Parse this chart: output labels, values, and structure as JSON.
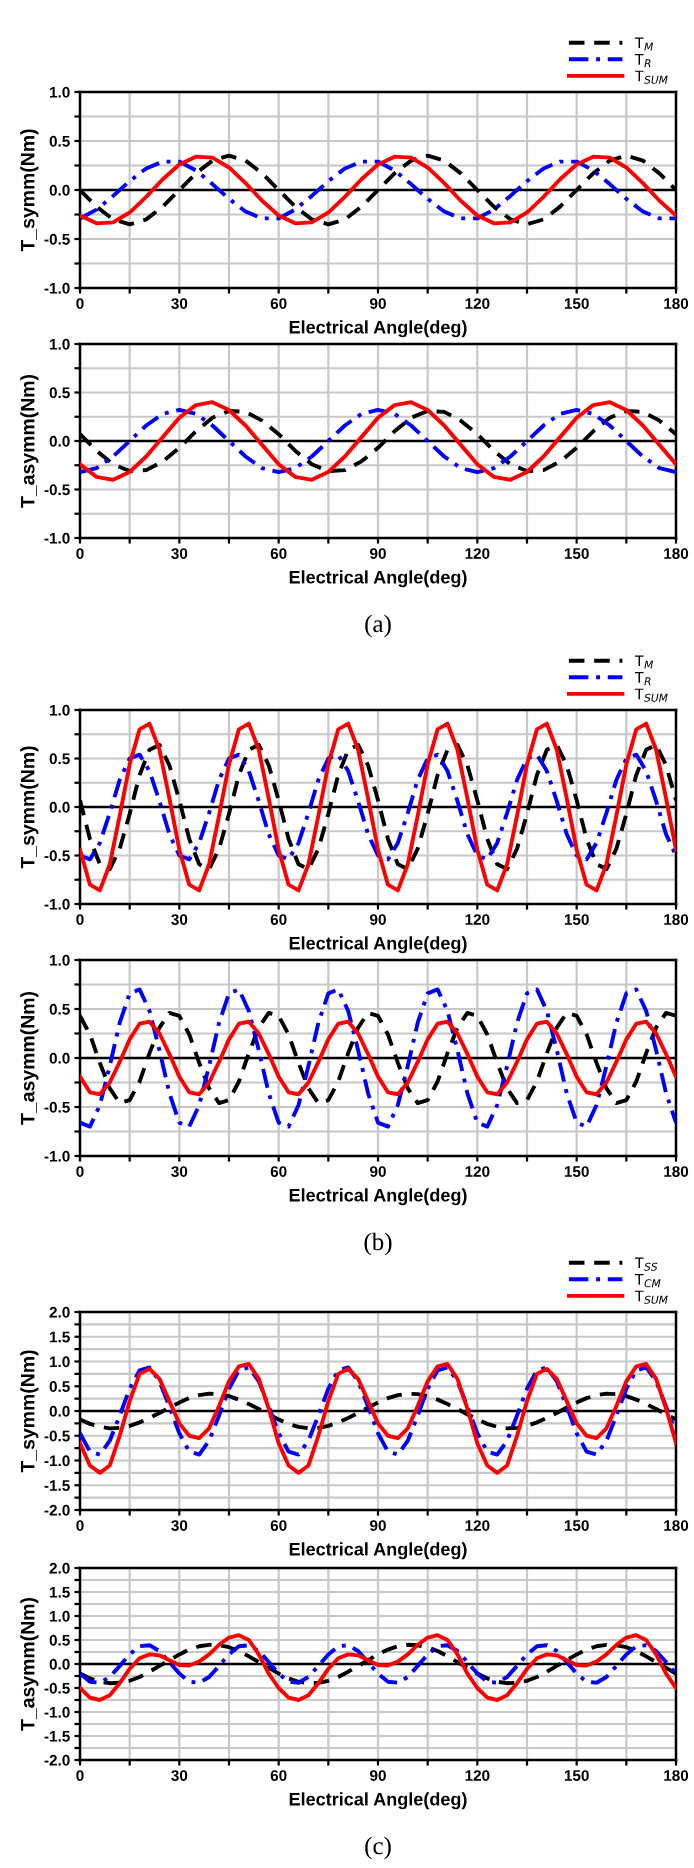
{
  "chart_data": [
    {
      "type": "line",
      "ylabel": "T_symm(Nm)",
      "legend": "top right",
      "grid": true,
      "xlim": [
        0,
        180
      ],
      "ylim": [
        -1.0,
        1.0
      ],
      "xticks": [
        0,
        {
          "value": 15,
          "label": null
        },
        30,
        {
          "value": 45,
          "label": null
        },
        60,
        {
          "value": 75,
          "label": null
        },
        90,
        {
          "value": 105,
          "label": null
        },
        120,
        {
          "value": 135,
          "label": null
        },
        150,
        {
          "value": 165,
          "label": null
        },
        180
      ],
      "yticks": [
        {
          "value": -1.0,
          "label": "-1.0"
        },
        {
          "value": -0.75,
          "label": null
        },
        {
          "value": -0.5,
          "label": "-0.5"
        },
        {
          "value": -0.25,
          "label": null
        },
        {
          "value": 0.0,
          "label": "0.0"
        },
        {
          "value": 0.25,
          "label": null
        },
        {
          "value": 0.5,
          "label": "0.5"
        },
        {
          "value": 0.75,
          "label": null
        },
        {
          "value": 1.0,
          "label": "1.0"
        }
      ],
      "ref_lines": [
        {
          "axis": "y",
          "value": 0,
          "color": "#000000"
        }
      ],
      "x": [
        0,
        5,
        10,
        15,
        20,
        25,
        30,
        35,
        40,
        45,
        50,
        55,
        60,
        65,
        70,
        75,
        80,
        85,
        90,
        95,
        100,
        105,
        110,
        115,
        120,
        125,
        130,
        135,
        140,
        145,
        150,
        155,
        160,
        165,
        170,
        175,
        180
      ],
      "series": [
        {
          "name": "T$_{M}$",
          "color": "#000000",
          "line_style": "dashed",
          "values": [
            0,
            -0.17,
            -0.3,
            -0.35,
            -0.3,
            -0.17,
            0,
            0.17,
            0.3,
            0.35,
            0.3,
            0.17,
            0,
            -0.17,
            -0.3,
            -0.35,
            -0.3,
            -0.17,
            0,
            0.17,
            0.3,
            0.35,
            0.3,
            0.17,
            0,
            -0.17,
            -0.3,
            -0.35,
            -0.3,
            -0.17,
            0,
            0.17,
            0.3,
            0.35,
            0.3,
            0.17,
            0
          ]
        },
        {
          "name": "T$_{R}$",
          "color": "#0000ff",
          "line_style": "dashdot",
          "values": [
            -0.29,
            -0.2,
            -0.06,
            0.09,
            0.22,
            0.29,
            0.29,
            0.2,
            0.06,
            -0.09,
            -0.22,
            -0.29,
            -0.29,
            -0.2,
            -0.06,
            0.09,
            0.22,
            0.29,
            0.29,
            0.2,
            0.06,
            -0.09,
            -0.22,
            -0.29,
            -0.29,
            -0.2,
            -0.06,
            0.09,
            0.22,
            0.29,
            0.29,
            0.2,
            0.06,
            -0.09,
            -0.22,
            -0.29,
            -0.29
          ]
        },
        {
          "name": "T$_{SUM}$",
          "color": "#ff0000",
          "line_style": "solid",
          "values": [
            -0.26,
            -0.34,
            -0.33,
            -0.23,
            -0.07,
            0.11,
            0.26,
            0.34,
            0.33,
            0.23,
            0.07,
            -0.11,
            -0.26,
            -0.34,
            -0.33,
            -0.23,
            -0.07,
            0.11,
            0.26,
            0.34,
            0.33,
            0.23,
            0.07,
            -0.11,
            -0.26,
            -0.34,
            -0.33,
            -0.23,
            -0.07,
            0.11,
            0.26,
            0.34,
            0.33,
            0.23,
            0.07,
            -0.11,
            -0.26
          ]
        }
      ],
      "xlabel": "Electrical Angle(deg)"
    },
    {
      "type": "line",
      "ylabel": "T_asymm(Nm)",
      "xlabel": "Electrical Angle(deg)",
      "legend": false,
      "grid": true,
      "xlim": [
        0,
        180
      ],
      "ylim": [
        -1.0,
        1.0
      ],
      "xticks": [
        0,
        {
          "value": 15,
          "label": null
        },
        30,
        {
          "value": 45,
          "label": null
        },
        60,
        {
          "value": 75,
          "label": null
        },
        90,
        {
          "value": 105,
          "label": null
        },
        120,
        {
          "value": 135,
          "label": null
        },
        150,
        {
          "value": 165,
          "label": null
        },
        180
      ],
      "yticks": [
        {
          "value": -1.0,
          "label": "-1.0"
        },
        {
          "value": -0.75,
          "label": null
        },
        {
          "value": -0.5,
          "label": "-0.5"
        },
        {
          "value": -0.25,
          "label": null
        },
        {
          "value": 0.0,
          "label": "0.0"
        },
        {
          "value": 0.25,
          "label": null
        },
        {
          "value": 0.5,
          "label": "0.5"
        },
        {
          "value": 0.75,
          "label": null
        },
        {
          "value": 1.0,
          "label": "1.0"
        }
      ],
      "ref_lines": [
        {
          "axis": "y",
          "value": 0,
          "color": "#000000"
        }
      ],
      "x": [
        0,
        5,
        10,
        15,
        20,
        25,
        30,
        35,
        40,
        45,
        50,
        55,
        60,
        65,
        70,
        75,
        80,
        85,
        90,
        95,
        100,
        105,
        110,
        115,
        120,
        125,
        130,
        135,
        140,
        145,
        150,
        155,
        160,
        165,
        170,
        175,
        180
      ],
      "series": [
        {
          "color": "#000000",
          "line_style": "dashed",
          "values": [
            0.07,
            -0.1,
            -0.24,
            -0.31,
            -0.3,
            -0.21,
            -0.07,
            0.1,
            0.24,
            0.31,
            0.3,
            0.21,
            0.07,
            -0.1,
            -0.24,
            -0.31,
            -0.3,
            -0.21,
            -0.07,
            0.1,
            0.24,
            0.31,
            0.3,
            0.21,
            0.07,
            -0.1,
            -0.24,
            -0.31,
            -0.3,
            -0.21,
            -0.07,
            0.1,
            0.24,
            0.31,
            0.3,
            0.21,
            0.07
          ]
        },
        {
          "color": "#0000ff",
          "line_style": "dashdot",
          "values": [
            -0.32,
            -0.28,
            -0.16,
            0,
            0.16,
            0.28,
            0.32,
            0.28,
            0.16,
            0,
            -0.16,
            -0.28,
            -0.32,
            -0.28,
            -0.16,
            0,
            0.16,
            0.28,
            0.32,
            0.28,
            0.16,
            0,
            -0.16,
            -0.28,
            -0.32,
            -0.28,
            -0.16,
            0,
            0.16,
            0.28,
            0.32,
            0.28,
            0.16,
            0,
            -0.16,
            -0.28,
            -0.32
          ]
        },
        {
          "color": "#ff0000",
          "line_style": "solid",
          "values": [
            -0.24,
            -0.37,
            -0.4,
            -0.32,
            -0.16,
            0.04,
            0.24,
            0.37,
            0.4,
            0.32,
            0.16,
            -0.04,
            -0.24,
            -0.37,
            -0.4,
            -0.32,
            -0.16,
            0.04,
            0.24,
            0.37,
            0.4,
            0.32,
            0.16,
            -0.04,
            -0.24,
            -0.37,
            -0.4,
            -0.32,
            -0.16,
            0.04,
            0.24,
            0.37,
            0.4,
            0.32,
            0.16,
            -0.04,
            -0.24
          ]
        }
      ],
      "annotations": [
        "(a)"
      ]
    },
    {
      "type": "line",
      "ylabel": "T_symm(Nm)",
      "legend": "top right",
      "grid": true,
      "xlim": [
        0,
        180
      ],
      "ylim": [
        -1.0,
        1.0
      ],
      "xticks": [
        0,
        {
          "value": 15,
          "label": null
        },
        30,
        {
          "value": 45,
          "label": null
        },
        60,
        {
          "value": 75,
          "label": null
        },
        90,
        {
          "value": 105,
          "label": null
        },
        120,
        {
          "value": 135,
          "label": null
        },
        150,
        {
          "value": 165,
          "label": null
        },
        180
      ],
      "yticks": [
        {
          "value": -1.0,
          "label": "-1.0"
        },
        {
          "value": -0.75,
          "label": null
        },
        {
          "value": -0.5,
          "label": "-0.5"
        },
        {
          "value": -0.25,
          "label": null
        },
        {
          "value": 0.0,
          "label": "0.0"
        },
        {
          "value": 0.25,
          "label": null
        },
        {
          "value": 0.5,
          "label": "0.5"
        },
        {
          "value": 0.75,
          "label": null
        },
        {
          "value": 1.0,
          "label": "1.0"
        }
      ],
      "ref_lines": [
        {
          "axis": "y",
          "value": 0,
          "color": "#000000"
        }
      ],
      "x": [
        0,
        3,
        6,
        9,
        12,
        15,
        18,
        21,
        24,
        27,
        30,
        33,
        36,
        39,
        42,
        45,
        48,
        51,
        54,
        57,
        60,
        63,
        66,
        69,
        72,
        75,
        78,
        81,
        84,
        87,
        90,
        93,
        96,
        99,
        102,
        105,
        108,
        111,
        114,
        117,
        120,
        123,
        126,
        129,
        132,
        135,
        138,
        141,
        144,
        147,
        150,
        153,
        156,
        159,
        162,
        165,
        168,
        171,
        174,
        177,
        180
      ],
      "series": [
        {
          "name": "T$_{M}$",
          "color": "#000000",
          "line_style": "dashed",
          "values": [
            0.07,
            -0.33,
            -0.59,
            -0.64,
            -0.43,
            -0.07,
            0.33,
            0.59,
            0.64,
            0.43,
            0.07,
            -0.33,
            -0.59,
            -0.64,
            -0.43,
            -0.07,
            0.33,
            0.59,
            0.64,
            0.43,
            0.07,
            -0.33,
            -0.59,
            -0.64,
            -0.43,
            -0.07,
            0.33,
            0.59,
            0.64,
            0.43,
            0.07,
            -0.33,
            -0.59,
            -0.64,
            -0.43,
            -0.07,
            0.33,
            0.59,
            0.64,
            0.43,
            0.07,
            -0.33,
            -0.59,
            -0.64,
            -0.43,
            -0.07,
            0.33,
            0.59,
            0.64,
            0.43,
            0.07,
            -0.33,
            -0.59,
            -0.64,
            -0.43,
            -0.07,
            0.33,
            0.59,
            0.64,
            0.43,
            0.07
          ]
        },
        {
          "name": "T$_{R}$",
          "color": "#0000ff",
          "line_style": "dashdot",
          "values": [
            -0.5,
            -0.54,
            -0.37,
            -0.06,
            0.28,
            0.5,
            0.54,
            0.37,
            0.06,
            -0.28,
            -0.5,
            -0.54,
            -0.37,
            -0.06,
            0.28,
            0.5,
            0.54,
            0.37,
            0.06,
            -0.28,
            -0.5,
            -0.54,
            -0.37,
            -0.06,
            0.28,
            0.5,
            0.54,
            0.37,
            0.06,
            -0.28,
            -0.5,
            -0.54,
            -0.37,
            -0.06,
            0.28,
            0.5,
            0.54,
            0.37,
            0.06,
            -0.28,
            -0.5,
            -0.54,
            -0.37,
            -0.06,
            0.28,
            0.5,
            0.54,
            0.37,
            0.06,
            -0.28,
            -0.5,
            -0.54,
            -0.37,
            -0.06,
            0.28,
            0.5,
            0.54,
            0.37,
            0.06,
            -0.28,
            -0.5
          ]
        },
        {
          "name": "T$_{SUM}$",
          "color": "#ff0000",
          "line_style": "solid",
          "values": [
            -0.44,
            -0.8,
            -0.86,
            -0.59,
            -0.09,
            0.44,
            0.8,
            0.86,
            0.59,
            0.09,
            -0.44,
            -0.8,
            -0.86,
            -0.59,
            -0.09,
            0.44,
            0.8,
            0.86,
            0.59,
            0.09,
            -0.44,
            -0.8,
            -0.86,
            -0.59,
            -0.09,
            0.44,
            0.8,
            0.86,
            0.59,
            0.09,
            -0.44,
            -0.8,
            -0.86,
            -0.59,
            -0.09,
            0.44,
            0.8,
            0.86,
            0.59,
            0.09,
            -0.44,
            -0.8,
            -0.86,
            -0.59,
            -0.09,
            0.44,
            0.8,
            0.86,
            0.59,
            0.09,
            -0.44,
            -0.8,
            -0.86,
            -0.59,
            -0.09,
            0.44,
            0.8,
            0.86,
            0.59,
            0.09,
            -0.44
          ]
        }
      ],
      "xlabel": "Electrical Angle(deg)"
    },
    {
      "type": "line",
      "ylabel": "T_asymm(Nm)",
      "xlabel": "Electrical Angle(deg)",
      "legend": false,
      "grid": true,
      "xlim": [
        0,
        180
      ],
      "ylim": [
        -1.0,
        1.0
      ],
      "xticks": [
        0,
        {
          "value": 15,
          "label": null
        },
        30,
        {
          "value": 45,
          "label": null
        },
        60,
        {
          "value": 75,
          "label": null
        },
        90,
        {
          "value": 105,
          "label": null
        },
        120,
        {
          "value": 135,
          "label": null
        },
        150,
        {
          "value": 165,
          "label": null
        },
        180
      ],
      "yticks": [
        {
          "value": -1.0,
          "label": "-1.0"
        },
        {
          "value": -0.75,
          "label": null
        },
        {
          "value": -0.5,
          "label": "-0.5"
        },
        {
          "value": -0.25,
          "label": null
        },
        {
          "value": 0.0,
          "label": "0.0"
        },
        {
          "value": 0.25,
          "label": null
        },
        {
          "value": 0.5,
          "label": "0.5"
        },
        {
          "value": 0.75,
          "label": null
        },
        {
          "value": 1.0,
          "label": "1.0"
        }
      ],
      "ref_lines": [
        {
          "axis": "y",
          "value": 0,
          "color": "#000000"
        }
      ],
      "x": [
        0,
        3,
        6,
        9,
        12,
        15,
        18,
        21,
        24,
        27,
        30,
        33,
        36,
        39,
        42,
        45,
        48,
        51,
        54,
        57,
        60,
        63,
        66,
        69,
        72,
        75,
        78,
        81,
        84,
        87,
        90,
        93,
        96,
        99,
        102,
        105,
        108,
        111,
        114,
        117,
        120,
        123,
        126,
        129,
        132,
        135,
        138,
        141,
        144,
        147,
        150,
        153,
        156,
        159,
        162,
        165,
        168,
        171,
        174,
        177,
        180
      ],
      "series": [
        {
          "color": "#000000",
          "line_style": "dashed",
          "values": [
            0.43,
            0.24,
            -0.05,
            -0.31,
            -0.46,
            -0.43,
            -0.24,
            0.05,
            0.31,
            0.46,
            0.43,
            0.24,
            -0.05,
            -0.31,
            -0.46,
            -0.43,
            -0.24,
            0.05,
            0.31,
            0.46,
            0.43,
            0.24,
            -0.05,
            -0.31,
            -0.46,
            -0.43,
            -0.24,
            0.05,
            0.31,
            0.46,
            0.43,
            0.24,
            -0.05,
            -0.31,
            -0.46,
            -0.43,
            -0.24,
            0.05,
            0.31,
            0.46,
            0.43,
            0.24,
            -0.05,
            -0.31,
            -0.46,
            -0.43,
            -0.24,
            0.05,
            0.31,
            0.46,
            0.43,
            0.24,
            -0.05,
            -0.31,
            -0.46,
            -0.43,
            -0.24,
            0.05,
            0.31,
            0.46,
            0.43
          ]
        },
        {
          "color": "#0000ff",
          "line_style": "dashdot",
          "values": [
            -0.66,
            -0.7,
            -0.48,
            -0.08,
            0.36,
            0.66,
            0.7,
            0.48,
            0.08,
            -0.36,
            -0.66,
            -0.7,
            -0.48,
            -0.08,
            0.36,
            0.66,
            0.7,
            0.48,
            0.08,
            -0.36,
            -0.66,
            -0.7,
            -0.48,
            -0.08,
            0.36,
            0.66,
            0.7,
            0.48,
            0.08,
            -0.36,
            -0.66,
            -0.7,
            -0.48,
            -0.08,
            0.36,
            0.66,
            0.7,
            0.48,
            0.08,
            -0.36,
            -0.66,
            -0.7,
            -0.48,
            -0.08,
            0.36,
            0.66,
            0.7,
            0.48,
            0.08,
            -0.36,
            -0.66,
            -0.7,
            -0.48,
            -0.08,
            0.36,
            0.66,
            0.7,
            0.48,
            0.08,
            -0.36,
            -0.66
          ]
        },
        {
          "color": "#ff0000",
          "line_style": "solid",
          "values": [
            -0.19,
            -0.35,
            -0.37,
            -0.25,
            -0.04,
            0.19,
            0.35,
            0.37,
            0.25,
            0.04,
            -0.19,
            -0.35,
            -0.37,
            -0.25,
            -0.04,
            0.19,
            0.35,
            0.37,
            0.25,
            0.04,
            -0.19,
            -0.35,
            -0.37,
            -0.25,
            -0.04,
            0.19,
            0.35,
            0.37,
            0.25,
            0.04,
            -0.19,
            -0.35,
            -0.37,
            -0.25,
            -0.04,
            0.19,
            0.35,
            0.37,
            0.25,
            0.04,
            -0.19,
            -0.35,
            -0.37,
            -0.25,
            -0.04,
            0.19,
            0.35,
            0.37,
            0.25,
            0.04,
            -0.19,
            -0.35,
            -0.37,
            -0.25,
            -0.04,
            0.19,
            0.35,
            0.37,
            0.25,
            0.04,
            -0.19
          ]
        }
      ],
      "annotations": [
        "(b)"
      ]
    },
    {
      "type": "line",
      "ylabel": "T_symm(Nm)",
      "legend": "top right",
      "grid": true,
      "xlim": [
        0,
        180
      ],
      "ylim": [
        -2.0,
        2.0
      ],
      "xticks": [
        0,
        {
          "value": 15,
          "label": null
        },
        30,
        {
          "value": 45,
          "label": null
        },
        60,
        {
          "value": 75,
          "label": null
        },
        90,
        {
          "value": 105,
          "label": null
        },
        120,
        {
          "value": 135,
          "label": null
        },
        150,
        {
          "value": 165,
          "label": null
        },
        180
      ],
      "yticks": [
        {
          "value": -2.0,
          "label": "-2.0"
        },
        {
          "value": -1.75,
          "label": null
        },
        {
          "value": -1.5,
          "label": "-1.5"
        },
        {
          "value": -1.25,
          "label": null
        },
        {
          "value": -1.0,
          "label": "-1.0"
        },
        {
          "value": -0.75,
          "label": null
        },
        {
          "value": -0.5,
          "label": "-0.5"
        },
        {
          "value": -0.25,
          "label": null
        },
        {
          "value": 0.0,
          "label": "0.0"
        },
        {
          "value": 0.25,
          "label": null
        },
        {
          "value": 0.5,
          "label": "0.5"
        },
        {
          "value": 0.75,
          "label": null
        },
        {
          "value": 1.0,
          "label": "1.0"
        },
        {
          "value": 1.25,
          "label": null
        },
        {
          "value": 1.5,
          "label": "1.5"
        },
        {
          "value": 1.75,
          "label": null
        },
        {
          "value": 2.0,
          "label": "2.0"
        }
      ],
      "ref_lines": [
        {
          "axis": "y",
          "value": 0,
          "color": "#000000"
        }
      ],
      "x": [
        0,
        3,
        6,
        9,
        12,
        15,
        18,
        21,
        24,
        27,
        30,
        33,
        36,
        39,
        42,
        45,
        48,
        51,
        54,
        57,
        60,
        63,
        66,
        69,
        72,
        75,
        78,
        81,
        84,
        87,
        90,
        93,
        96,
        99,
        102,
        105,
        108,
        111,
        114,
        117,
        120,
        123,
        126,
        129,
        132,
        135,
        138,
        141,
        144,
        147,
        150,
        153,
        156,
        159,
        162,
        165,
        168,
        171,
        174,
        177,
        180
      ],
      "series": [
        {
          "name": "T$_{SS}$",
          "color": "#000000",
          "line_style": "dashed",
          "values": [
            -0.17,
            -0.26,
            -0.32,
            -0.35,
            -0.34,
            -0.3,
            -0.23,
            -0.14,
            -0.04,
            0.07,
            0.17,
            0.26,
            0.32,
            0.35,
            0.34,
            0.3,
            0.23,
            0.14,
            0.04,
            -0.07,
            -0.17,
            -0.26,
            -0.32,
            -0.35,
            -0.34,
            -0.3,
            -0.23,
            -0.14,
            -0.04,
            0.07,
            0.17,
            0.26,
            0.32,
            0.35,
            0.34,
            0.3,
            0.23,
            0.14,
            0.04,
            -0.07,
            -0.17,
            -0.26,
            -0.32,
            -0.35,
            -0.34,
            -0.3,
            -0.23,
            -0.14,
            -0.04,
            0.07,
            0.17,
            0.26,
            0.32,
            0.35,
            0.34,
            0.3,
            0.23,
            0.14,
            0.04,
            -0.07,
            -0.17
          ]
        },
        {
          "name": "T$_{CM}$",
          "color": "#0000ff",
          "line_style": "dashdot",
          "values": [
            -0.45,
            -0.82,
            -0.88,
            -0.6,
            -0.09,
            0.45,
            0.82,
            0.88,
            0.6,
            0.09,
            -0.45,
            -0.82,
            -0.88,
            -0.6,
            -0.09,
            0.45,
            0.82,
            0.88,
            0.6,
            0.09,
            -0.45,
            -0.82,
            -0.88,
            -0.6,
            -0.09,
            0.45,
            0.82,
            0.88,
            0.6,
            0.09,
            -0.45,
            -0.82,
            -0.88,
            -0.6,
            -0.09,
            0.45,
            0.82,
            0.88,
            0.6,
            0.09,
            -0.45,
            -0.82,
            -0.88,
            -0.6,
            -0.09,
            0.45,
            0.82,
            0.88,
            0.6,
            0.09,
            -0.45,
            -0.82,
            -0.88,
            -0.6,
            -0.09,
            0.45,
            0.82,
            0.88,
            0.6,
            0.09,
            -0.45
          ]
        },
        {
          "name": "T$_{SUM}$",
          "color": "#ff0000",
          "line_style": "solid",
          "values": [
            -0.65,
            -1.1,
            -1.25,
            -1.1,
            -0.5,
            0.2,
            0.75,
            0.85,
            0.65,
            0.2,
            -0.25,
            -0.5,
            -0.55,
            -0.35,
            0.1,
            0.6,
            0.9,
            0.95,
            0.65,
            0.05,
            -0.65,
            -1.1,
            -1.25,
            -1.1,
            -0.5,
            0.2,
            0.75,
            0.85,
            0.65,
            0.2,
            -0.25,
            -0.5,
            -0.55,
            -0.35,
            0.1,
            0.6,
            0.9,
            0.95,
            0.65,
            0.05,
            -0.65,
            -1.1,
            -1.25,
            -1.1,
            -0.5,
            0.2,
            0.75,
            0.85,
            0.65,
            0.2,
            -0.25,
            -0.5,
            -0.55,
            -0.35,
            0.1,
            0.6,
            0.9,
            0.95,
            0.65,
            0.05,
            -0.65
          ]
        }
      ],
      "xlabel": "Electrical Angle(deg)"
    },
    {
      "type": "line",
      "ylabel": "T_asymm(Nm)",
      "xlabel": "Electrical Angle(deg)",
      "legend": false,
      "grid": true,
      "xlim": [
        0,
        180
      ],
      "ylim": [
        -2.0,
        2.0
      ],
      "xticks": [
        0,
        {
          "value": 15,
          "label": null
        },
        30,
        {
          "value": 45,
          "label": null
        },
        60,
        {
          "value": 75,
          "label": null
        },
        90,
        {
          "value": 105,
          "label": null
        },
        120,
        {
          "value": 135,
          "label": null
        },
        150,
        {
          "value": 165,
          "label": null
        },
        180
      ],
      "yticks": [
        {
          "value": -2.0,
          "label": "-2.0"
        },
        {
          "value": -1.75,
          "label": null
        },
        {
          "value": -1.5,
          "label": "-1.5"
        },
        {
          "value": -1.25,
          "label": null
        },
        {
          "value": -1.0,
          "label": "-1.0"
        },
        {
          "value": -0.75,
          "label": null
        },
        {
          "value": -0.5,
          "label": "-0.5"
        },
        {
          "value": -0.25,
          "label": null
        },
        {
          "value": 0.0,
          "label": "0.0"
        },
        {
          "value": 0.25,
          "label": null
        },
        {
          "value": 0.5,
          "label": "0.5"
        },
        {
          "value": 0.75,
          "label": null
        },
        {
          "value": 1.0,
          "label": "1.0"
        },
        {
          "value": 1.25,
          "label": null
        },
        {
          "value": 1.5,
          "label": "1.5"
        },
        {
          "value": 1.75,
          "label": null
        },
        {
          "value": 2.0,
          "label": "2.0"
        }
      ],
      "ref_lines": [
        {
          "axis": "y",
          "value": 0,
          "color": "#000000"
        }
      ],
      "x": [
        0,
        3,
        6,
        9,
        12,
        15,
        18,
        21,
        24,
        27,
        30,
        33,
        36,
        39,
        42,
        45,
        48,
        51,
        54,
        57,
        60,
        63,
        66,
        69,
        72,
        75,
        78,
        81,
        84,
        87,
        90,
        93,
        96,
        99,
        102,
        105,
        108,
        111,
        114,
        117,
        120,
        123,
        126,
        129,
        132,
        135,
        138,
        141,
        144,
        147,
        150,
        153,
        156,
        159,
        162,
        165,
        168,
        171,
        174,
        177,
        180
      ],
      "series": [
        {
          "color": "#000000",
          "line_style": "dashed",
          "values": [
            -0.2,
            -0.3,
            -0.37,
            -0.4,
            -0.39,
            -0.35,
            -0.27,
            -0.16,
            -0.04,
            0.08,
            0.2,
            0.3,
            0.37,
            0.4,
            0.39,
            0.35,
            0.27,
            0.16,
            0.04,
            -0.08,
            -0.2,
            -0.3,
            -0.37,
            -0.4,
            -0.39,
            -0.35,
            -0.27,
            -0.16,
            -0.04,
            0.08,
            0.2,
            0.3,
            0.37,
            0.4,
            0.39,
            0.35,
            0.27,
            0.16,
            0.04,
            -0.08,
            -0.2,
            -0.3,
            -0.37,
            -0.4,
            -0.39,
            -0.35,
            -0.27,
            -0.16,
            -0.04,
            0.08,
            0.2,
            0.3,
            0.37,
            0.4,
            0.39,
            0.35,
            0.27,
            0.16,
            0.04,
            -0.08,
            -0.2
          ]
        },
        {
          "color": "#0000ff",
          "line_style": "dashdot",
          "values": [
            -0.2,
            -0.37,
            -0.39,
            -0.27,
            -0.04,
            0.2,
            0.37,
            0.39,
            0.27,
            0.04,
            -0.2,
            -0.37,
            -0.39,
            -0.27,
            -0.04,
            0.2,
            0.37,
            0.39,
            0.27,
            0.04,
            -0.2,
            -0.37,
            -0.39,
            -0.27,
            -0.04,
            0.2,
            0.37,
            0.39,
            0.27,
            0.04,
            -0.2,
            -0.37,
            -0.39,
            -0.27,
            -0.04,
            0.2,
            0.37,
            0.39,
            0.27,
            0.04,
            -0.2,
            -0.37,
            -0.39,
            -0.27,
            -0.04,
            0.2,
            0.37,
            0.39,
            0.27,
            0.04,
            -0.2,
            -0.37,
            -0.39,
            -0.27,
            -0.04,
            0.2,
            0.37,
            0.39,
            0.27,
            0.04,
            -0.2
          ]
        },
        {
          "color": "#ff0000",
          "line_style": "solid",
          "values": [
            -0.5,
            -0.7,
            -0.75,
            -0.65,
            -0.4,
            -0.1,
            0.12,
            0.2,
            0.18,
            0.08,
            -0.02,
            -0.03,
            0.05,
            0.2,
            0.4,
            0.55,
            0.6,
            0.5,
            0.2,
            -0.2,
            -0.5,
            -0.7,
            -0.75,
            -0.65,
            -0.4,
            -0.1,
            0.12,
            0.2,
            0.18,
            0.08,
            -0.02,
            -0.03,
            0.05,
            0.2,
            0.4,
            0.55,
            0.6,
            0.5,
            0.2,
            -0.2,
            -0.5,
            -0.7,
            -0.75,
            -0.65,
            -0.4,
            -0.1,
            0.12,
            0.2,
            0.18,
            0.08,
            -0.02,
            -0.03,
            0.05,
            0.2,
            0.4,
            0.55,
            0.6,
            0.5,
            0.2,
            -0.2,
            -0.5
          ]
        }
      ],
      "annotations": [
        "(c)"
      ]
    }
  ]
}
